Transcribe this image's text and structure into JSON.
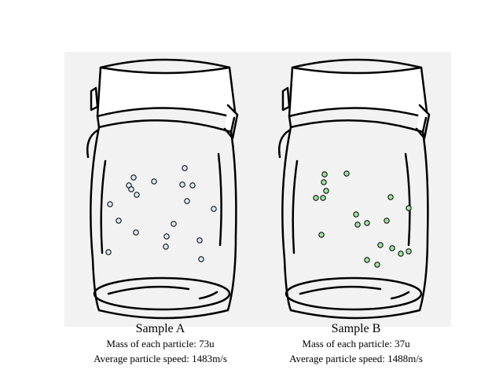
{
  "colors": {
    "panel_background": "#f2f2f2",
    "outline": "#000000",
    "particle_a": "#d5e9f5",
    "particle_b": "#9ee2a0"
  },
  "samples": [
    {
      "title": "Sample A",
      "mass_text": "Mass of each particle: 73u",
      "speed_text": "Average particle speed: 1483m/s",
      "particle_count": 19
    },
    {
      "title": "Sample B",
      "mass_text": "Mass of each particle: 37u",
      "speed_text": "Average particle speed: 1488m/s",
      "particle_count": 19
    }
  ]
}
